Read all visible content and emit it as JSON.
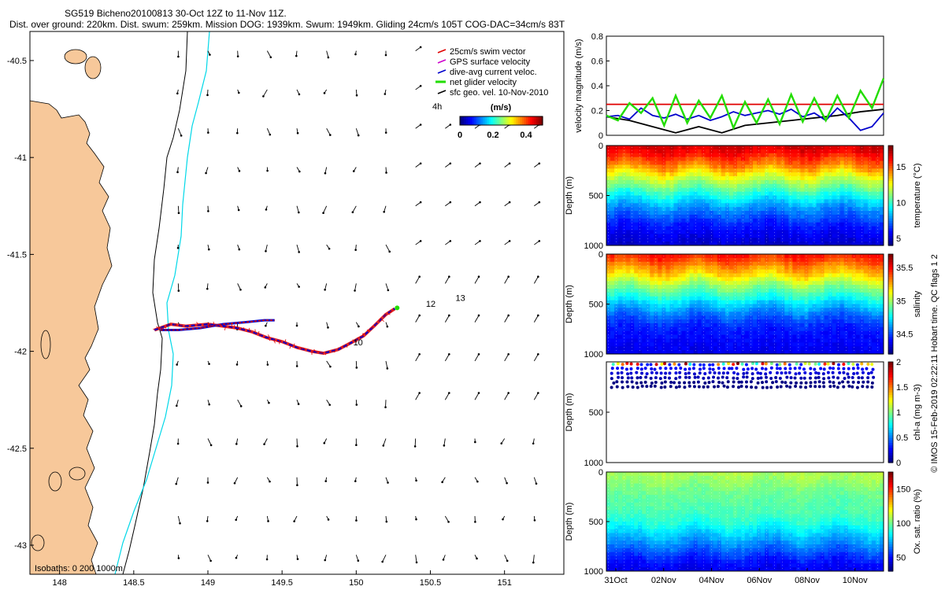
{
  "header": {
    "line1": "SG519 Bicheno20100813 30-Oct 12Z to 11-Nov 11Z.",
    "line2": "Dist. over ground: 220km. Dist. swum: 259km. Mission DOG: 1939km. Swum: 1949km. Gliding 24cm/s 105T COG-DAC=34cm/s 83T"
  },
  "credit": "© IMOS 15-Feb-2019 02:22:11 Hobart time. QC flags 1  2",
  "colors": {
    "land": "#F7C89A",
    "coast": "#000000",
    "isobath_200": "#000000",
    "isobath_1000": "#00D8E8",
    "swim": "#E00000",
    "gps": "#CC00CC",
    "dac": "#0000CC",
    "net": "#22DD00",
    "geo": "#000000"
  },
  "chart_data": [
    {
      "id": "map",
      "type": "map",
      "xlim": [
        147.8,
        151.4
      ],
      "ylim": [
        -43.15,
        -40.35
      ],
      "x_ticks": [
        "148",
        "148.5",
        "149",
        "149.5",
        "150",
        "150.5",
        "151"
      ],
      "y_ticks": [
        "-40.5",
        "-41",
        "-41.5",
        "-42",
        "-42.5",
        "-43"
      ],
      "legend": {
        "items": [
          "25cm/s swim vector",
          "GPS surface velocity",
          "dive-avg current veloc.",
          "net glider velocity",
          "sfc geo. vel. 10-Nov-2010"
        ],
        "colorbar_label": "(m/s)",
        "colorbar_ticks": [
          "0",
          "0.2",
          "0.4"
        ],
        "colorbar_range": [
          0,
          0.5
        ],
        "scale_label": "4h"
      },
      "isobaths_label": "Isobaths: 0  200  1000m",
      "day_labels": [
        {
          "text": "10",
          "lon": 149.98,
          "lat": -41.97
        },
        {
          "text": "12",
          "lon": 150.47,
          "lat": -41.77
        },
        {
          "text": "13",
          "lon": 150.67,
          "lat": -41.74
        }
      ],
      "track": [
        [
          148.64,
          -41.89
        ],
        [
          148.75,
          -41.86
        ],
        [
          148.85,
          -41.87
        ],
        [
          149.0,
          -41.86
        ],
        [
          149.1,
          -41.87
        ],
        [
          149.2,
          -41.88
        ],
        [
          149.3,
          -41.9
        ],
        [
          149.4,
          -41.93
        ],
        [
          149.5,
          -41.95
        ],
        [
          149.6,
          -41.98
        ],
        [
          149.7,
          -42.0
        ],
        [
          149.78,
          -42.01
        ],
        [
          149.88,
          -41.99
        ],
        [
          149.98,
          -41.95
        ],
        [
          150.05,
          -41.92
        ],
        [
          150.12,
          -41.87
        ],
        [
          150.2,
          -41.81
        ],
        [
          150.26,
          -41.78
        ]
      ],
      "track_lower": [
        [
          148.68,
          -41.89
        ],
        [
          148.8,
          -41.89
        ],
        [
          148.95,
          -41.88
        ],
        [
          149.1,
          -41.86
        ],
        [
          149.25,
          -41.85
        ],
        [
          149.38,
          -41.84
        ],
        [
          149.45,
          -41.84
        ]
      ]
    },
    {
      "id": "velocity",
      "type": "line",
      "ylabel": "velocity magnitude (m/s)",
      "ylim": [
        0,
        0.8
      ],
      "y_ticks": [
        "0",
        "0.2",
        "0.4",
        "0.6",
        "0.8"
      ],
      "x_days": [
        0,
        12
      ],
      "series": [
        {
          "name": "25cm/s swim vector",
          "color": "#E00000",
          "x": [
            0,
            12
          ],
          "y": [
            0.25,
            0.25
          ]
        },
        {
          "name": "sfc geo. vel. 10-Nov-2010",
          "color": "#000000",
          "x": [
            0,
            1,
            2,
            3,
            4,
            5,
            6,
            7,
            8,
            9,
            10,
            11,
            12
          ],
          "y": [
            0.15,
            0.12,
            0.07,
            0.02,
            0.07,
            0.02,
            0.08,
            0.1,
            0.12,
            0.14,
            0.16,
            0.19,
            0.21
          ]
        },
        {
          "name": "dive-avg current veloc.",
          "color": "#0000CC",
          "x": [
            0,
            0.5,
            1,
            1.5,
            2,
            2.5,
            3,
            3.5,
            4,
            4.5,
            5,
            5.5,
            6,
            6.5,
            7,
            7.5,
            8,
            8.5,
            9,
            9.5,
            10,
            10.5,
            11,
            11.5,
            12
          ],
          "y": [
            0.15,
            0.16,
            0.13,
            0.22,
            0.16,
            0.14,
            0.17,
            0.13,
            0.16,
            0.12,
            0.15,
            0.19,
            0.16,
            0.18,
            0.2,
            0.17,
            0.21,
            0.15,
            0.18,
            0.12,
            0.22,
            0.14,
            0.04,
            0.07,
            0.18
          ]
        },
        {
          "name": "net glider velocity",
          "color": "#22DD00",
          "x": [
            0,
            0.5,
            1,
            1.5,
            2,
            2.5,
            3,
            3.5,
            4,
            4.5,
            5,
            5.5,
            6,
            6.5,
            7,
            7.5,
            8,
            8.5,
            9,
            9.5,
            10,
            10.5,
            11,
            11.5,
            12
          ],
          "y": [
            0.16,
            0.12,
            0.26,
            0.18,
            0.3,
            0.08,
            0.32,
            0.1,
            0.28,
            0.14,
            0.32,
            0.06,
            0.27,
            0.1,
            0.29,
            0.09,
            0.33,
            0.11,
            0.3,
            0.12,
            0.32,
            0.14,
            0.36,
            0.22,
            0.46
          ]
        }
      ]
    },
    {
      "id": "temperature",
      "type": "heatmap",
      "ylabel": "Depth (m)",
      "ylim": [
        1000,
        0
      ],
      "y_ticks": [
        "0",
        "500",
        "1000"
      ],
      "colorbar_label": "temperature (°C)",
      "colorbar_range": [
        4,
        18
      ],
      "colorbar_ticks": [
        "5",
        "10",
        "15"
      ],
      "profile_depth": [
        0,
        100,
        200,
        300,
        400,
        500,
        600,
        700,
        800,
        900,
        1000
      ],
      "profile_value": [
        17,
        16,
        14.5,
        12.5,
        11,
        9.5,
        8,
        7,
        6,
        5.5,
        5
      ]
    },
    {
      "id": "salinity",
      "type": "heatmap",
      "ylabel": "Depth (m)",
      "ylim": [
        1000,
        0
      ],
      "y_ticks": [
        "0",
        "500",
        "1000"
      ],
      "colorbar_label": "salinity",
      "colorbar_range": [
        34.2,
        35.7
      ],
      "colorbar_ticks": [
        "34.5",
        "35",
        "35.5"
      ],
      "profile_depth": [
        0,
        100,
        200,
        300,
        400,
        500,
        600,
        700,
        800,
        900,
        1000
      ],
      "profile_value": [
        35.5,
        35.35,
        35.2,
        35.0,
        34.85,
        34.7,
        34.55,
        34.45,
        34.4,
        34.38,
        34.35
      ]
    },
    {
      "id": "chlorophyll",
      "type": "scatter",
      "ylabel": "Depth (m)",
      "ylim": [
        1000,
        0
      ],
      "y_ticks": [
        "500",
        "1000"
      ],
      "colorbar_label": "chl-a (mg m-3)",
      "colorbar_range": [
        0,
        2
      ],
      "colorbar_ticks": [
        "0",
        "0.5",
        "1",
        "1.5",
        "2"
      ],
      "max_depth": 250
    },
    {
      "id": "oxygen",
      "type": "heatmap",
      "ylabel": "Depth (m)",
      "ylim": [
        1000,
        0
      ],
      "y_ticks": [
        "0",
        "500",
        "1000"
      ],
      "colorbar_label": "Ox. sat. ratio (%)",
      "colorbar_range": [
        30,
        175
      ],
      "colorbar_ticks": [
        "50",
        "100",
        "150"
      ],
      "profile_depth": [
        0,
        100,
        200,
        300,
        400,
        500,
        600,
        700,
        800,
        900,
        1000
      ],
      "profile_value": [
        110,
        105,
        100,
        97,
        95,
        90,
        80,
        70,
        60,
        50,
        45
      ],
      "time_ticks": [
        "31Oct",
        "02Nov",
        "04Nov",
        "06Nov",
        "08Nov",
        "10Nov"
      ]
    }
  ]
}
